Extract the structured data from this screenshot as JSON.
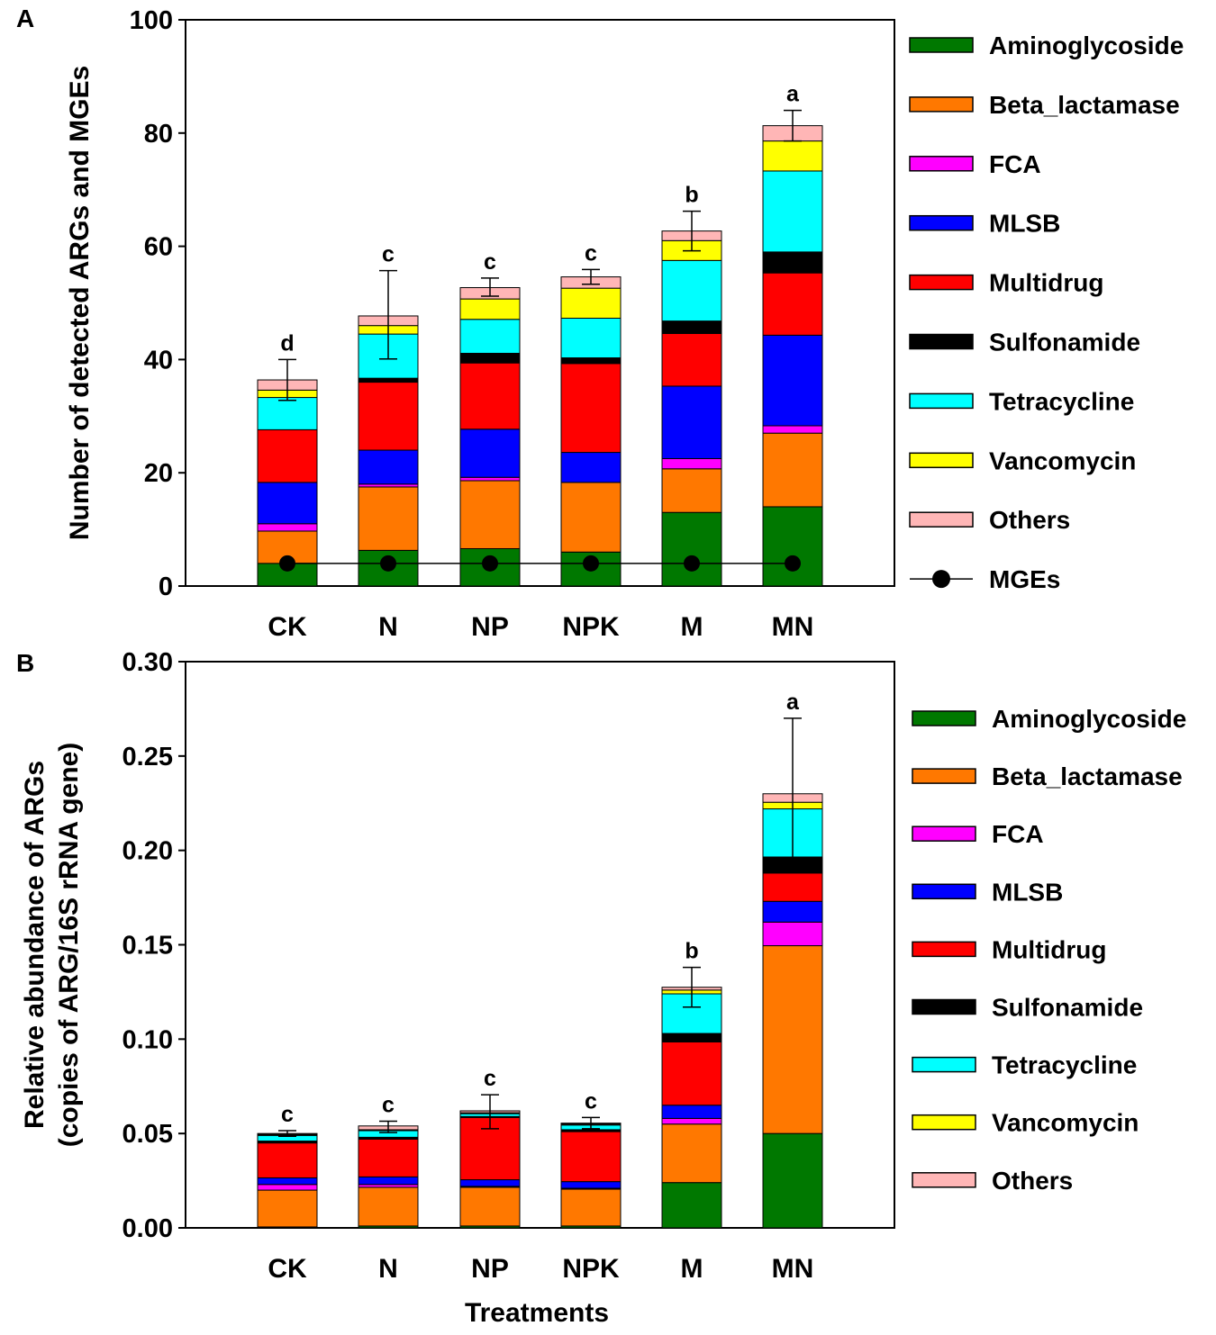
{
  "chart_data": [
    {
      "panel_label": "A",
      "type": "bar",
      "stacked": true,
      "categories": [
        "CK",
        "N",
        "NP",
        "NPK",
        "M",
        "MN"
      ],
      "xlabel": "",
      "ylabel": "Number of detected ARGs and MGEs",
      "ylim": [
        0,
        100
      ],
      "yticks": [
        "0",
        "20",
        "40",
        "60",
        "80",
        "100"
      ],
      "series": [
        {
          "name": "Aminoglycoside",
          "color": "#007800",
          "values": [
            4,
            6.3,
            6.6,
            6,
            13,
            14
          ]
        },
        {
          "name": "Beta_lactamase",
          "color": "#FF7800",
          "values": [
            5.7,
            11.2,
            12,
            12.3,
            7.7,
            13
          ]
        },
        {
          "name": "FCA",
          "color": "#FF00FF",
          "values": [
            1.3,
            0.5,
            0.6,
            0,
            1.8,
            1.3
          ]
        },
        {
          "name": "MLSB",
          "color": "#0000FF",
          "values": [
            7.3,
            6,
            8.5,
            5.3,
            12.8,
            16
          ]
        },
        {
          "name": "Multidrug",
          "color": "#FF0000",
          "values": [
            9.3,
            12,
            11.7,
            15.7,
            9.3,
            11
          ]
        },
        {
          "name": "Sulfonamide",
          "color": "#000000",
          "values": [
            0,
            0.7,
            1.7,
            1,
            2.2,
            3.7
          ]
        },
        {
          "name": "Tetracycline",
          "color": "#00FFFF",
          "values": [
            5.7,
            7.8,
            6,
            7,
            10.7,
            14.3
          ]
        },
        {
          "name": "Vancomycin",
          "color": "#FFFF00",
          "values": [
            1.3,
            1.5,
            3.6,
            5.3,
            3.5,
            5.3
          ]
        },
        {
          "name": "Others",
          "color": "#FFB6B6",
          "values": [
            1.8,
            1.7,
            2,
            2,
            1.7,
            2.7
          ]
        }
      ],
      "totals": [
        36.4,
        47.9,
        52.8,
        54.6,
        62.7,
        81.3
      ],
      "error": [
        3.6,
        7.8,
        1.6,
        1.3,
        3.5,
        2.7
      ],
      "significance": [
        "d",
        "c",
        "c",
        "c",
        "b",
        "a"
      ],
      "line_series": {
        "name": "MGEs",
        "color": "#000000",
        "values": [
          4,
          4,
          4,
          4,
          4,
          4
        ]
      }
    },
    {
      "panel_label": "B",
      "type": "bar",
      "stacked": true,
      "categories": [
        "CK",
        "N",
        "NP",
        "NPK",
        "M",
        "MN"
      ],
      "xlabel": "Treatments",
      "ylabel_lines": [
        "Relative abundance of ARGs",
        "(copies of ARG/16S rRNA gene)"
      ],
      "ylim": [
        0,
        0.3
      ],
      "yticks": [
        "0.00",
        "0.05",
        "0.10",
        "0.15",
        "0.20",
        "0.25",
        "0.30"
      ],
      "series": [
        {
          "name": "Aminoglycoside",
          "color": "#007800",
          "values": [
            0.0005,
            0.001,
            0.001,
            0.001,
            0.024,
            0.05
          ]
        },
        {
          "name": "Beta_lactamase",
          "color": "#FF7800",
          "values": [
            0.0195,
            0.0205,
            0.0205,
            0.0195,
            0.031,
            0.0995
          ]
        },
        {
          "name": "FCA",
          "color": "#FF00FF",
          "values": [
            0.003,
            0.0015,
            0.0005,
            0.0005,
            0.003,
            0.0125
          ]
        },
        {
          "name": "MLSB",
          "color": "#0000FF",
          "values": [
            0.0035,
            0.004,
            0.0035,
            0.0035,
            0.007,
            0.011
          ]
        },
        {
          "name": "Multidrug",
          "color": "#FF0000",
          "values": [
            0.0185,
            0.02,
            0.033,
            0.0265,
            0.0335,
            0.015
          ]
        },
        {
          "name": "Sulfonamide",
          "color": "#000000",
          "values": [
            0.001,
            0.001,
            0.0005,
            0.001,
            0.0045,
            0.0085
          ]
        },
        {
          "name": "Tetracycline",
          "color": "#00FFFF",
          "values": [
            0.003,
            0.0035,
            0.0015,
            0.0025,
            0.021,
            0.0255
          ]
        },
        {
          "name": "Vancomycin",
          "color": "#FFFF00",
          "values": [
            0.0005,
            0.0005,
            0.0005,
            0.0005,
            0.002,
            0.0035
          ]
        },
        {
          "name": "Others",
          "color": "#FFB6B6",
          "values": [
            0.0005,
            0.002,
            0.001,
            0.0005,
            0.0015,
            0.0045
          ]
        }
      ],
      "totals": [
        0.05,
        0.0535,
        0.0615,
        0.0555,
        0.1275,
        0.23
      ],
      "error": [
        0.0015,
        0.003,
        0.009,
        0.003,
        0.0105,
        0.04
      ],
      "significance": [
        "c",
        "c",
        "c",
        "c",
        "b",
        "a"
      ],
      "line_series": null
    }
  ]
}
